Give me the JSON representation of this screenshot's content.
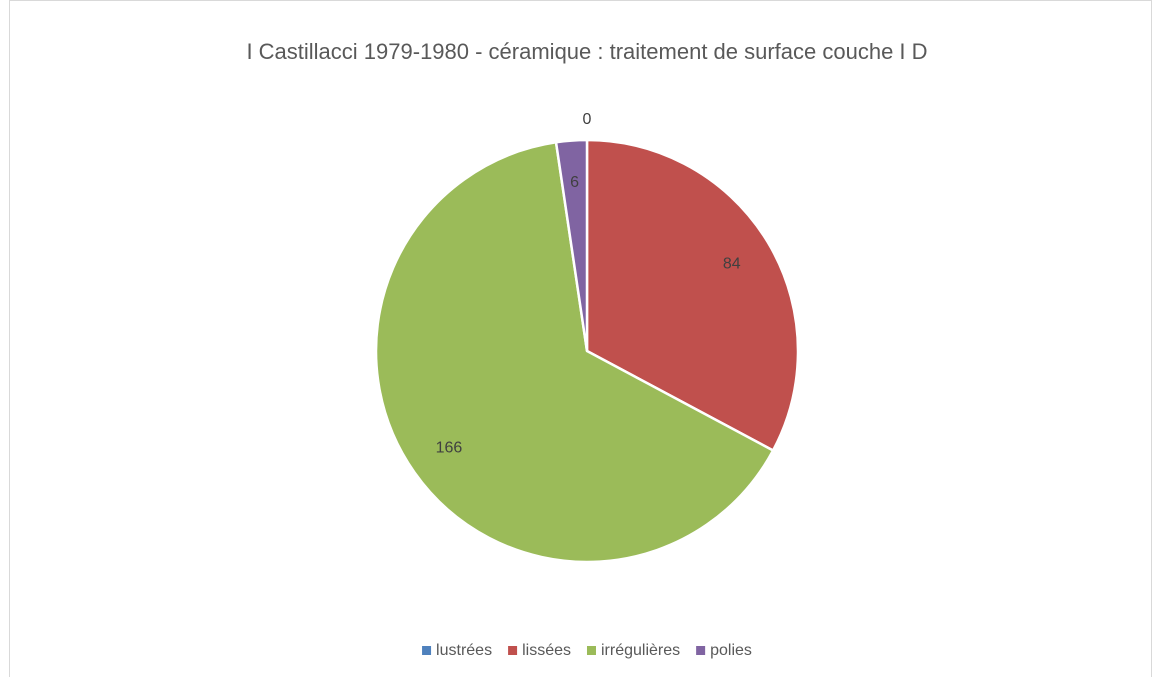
{
  "chart_data": {
    "type": "pie",
    "title": "I Castillacci 1979-1980 - céramique : traitement de surface couche I D",
    "categories": [
      "lustrées",
      "lissées",
      "irrégulières",
      "polies"
    ],
    "values": [
      0,
      84,
      166,
      6
    ],
    "colors": [
      "#4f81bd",
      "#c0504d",
      "#9bbb59",
      "#8064a2"
    ],
    "legend": "bottom"
  }
}
